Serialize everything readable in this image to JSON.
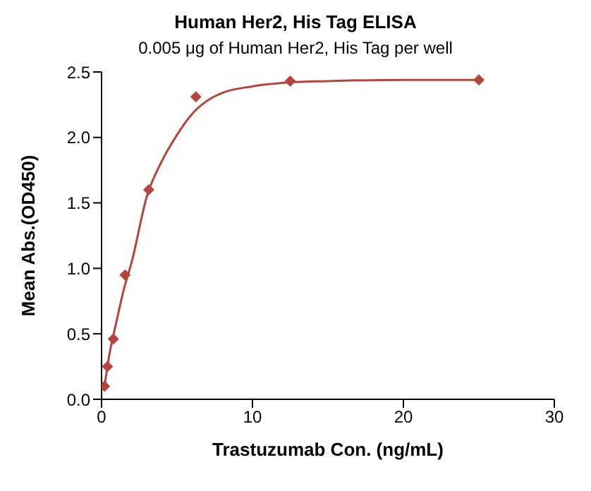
{
  "chart_data": {
    "type": "scatter",
    "title": "Human Her2, His Tag ELISA",
    "subtitle": "0.005 μg of Human Her2, His Tag per well",
    "xlabel": "Trastuzumab Con. (ng/mL)",
    "ylabel": "Mean Abs.(OD450)",
    "series": [
      {
        "color": "#b5443f",
        "marker": "diamond",
        "x": [
          0.195,
          0.39,
          0.78,
          1.56,
          3.125,
          6.25,
          12.5,
          25
        ],
        "values": [
          0.1,
          0.25,
          0.46,
          0.95,
          1.6,
          2.31,
          2.43,
          2.44
        ]
      },
      {
        "type": "line",
        "color": "#b5443f",
        "marker": "none",
        "line_style": "solid",
        "x": [
          0.195,
          0.5,
          1,
          1.5,
          2,
          3,
          4,
          5,
          6,
          7,
          8,
          10,
          12.5,
          15,
          20,
          25
        ],
        "values": [
          0.1,
          0.33,
          0.6,
          0.85,
          1.05,
          1.55,
          1.82,
          2.02,
          2.18,
          2.28,
          2.34,
          2.39,
          2.42,
          2.43,
          2.44,
          2.44
        ]
      }
    ],
    "xlim": [
      0,
      30
    ],
    "xticks": [
      0,
      10,
      20,
      30
    ],
    "ylim": [
      0,
      2.5
    ],
    "yticks": [
      {
        "value": 0,
        "label": "0.0"
      },
      0.5,
      {
        "value": 1,
        "label": "1.0"
      },
      1.5,
      {
        "value": 2,
        "label": "2.0"
      },
      2.5
    ],
    "grid": false,
    "legend": false
  }
}
